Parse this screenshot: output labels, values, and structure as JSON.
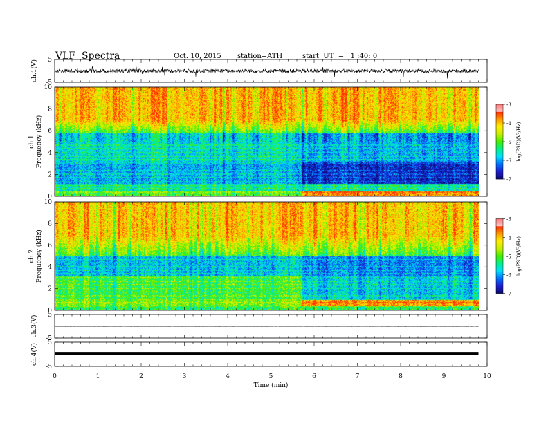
{
  "header": {
    "title": "VLF  Spectra",
    "date": "Oct. 10, 2015",
    "station": "station=ATH",
    "start": "start  UT  =   1 :40: 0"
  },
  "chart_data": [
    {
      "type": "line",
      "panel": "ch1-waveform",
      "ylabel": "ch.1(V)",
      "ylim": [
        -5,
        5
      ],
      "y_ticks": [
        "-5",
        "5"
      ],
      "x_range_min": [
        0,
        9.8
      ],
      "approx_level": 0,
      "line_color": "#000000"
    },
    {
      "type": "heatmap",
      "panel": "ch1-spectrogram",
      "ylabel_channel": "ch.1",
      "ylabel": "Frequency  (kHz)",
      "ylim": [
        0,
        10
      ],
      "y_ticks": [
        "0",
        "2",
        "4",
        "6",
        "8",
        "10"
      ],
      "data_end_min": 9.8,
      "colorbar": {
        "label": "log(PSD)(V²/Hz)",
        "range": [
          -7,
          -3
        ],
        "ticks": [
          "-3",
          "-4",
          "-5",
          "-6",
          "-7"
        ]
      }
    },
    {
      "type": "heatmap",
      "panel": "ch2-spectrogram",
      "ylabel_channel": "ch.2",
      "ylabel": "Frequency  (kHz)",
      "ylim": [
        0,
        10
      ],
      "y_ticks": [
        "0",
        "2",
        "4",
        "6",
        "8",
        "10"
      ],
      "data_end_min": 9.8,
      "colorbar": {
        "label": "log(PSD)(V²/Hz)",
        "range": [
          -7,
          -3
        ],
        "ticks": [
          "-3",
          "-4",
          "-5",
          "-6",
          "-7"
        ]
      }
    },
    {
      "type": "line",
      "panel": "ch3-waveform",
      "ylabel": "ch.3(V)",
      "ylim": [
        -5,
        5
      ],
      "y_ticks": [
        "-5",
        "5"
      ],
      "approx_level": 0,
      "line_color": "#000000"
    },
    {
      "type": "line",
      "panel": "ch4-waveform",
      "ylabel": "ch.4(V)",
      "ylim": [
        -5,
        5
      ],
      "y_ticks": [
        "-5",
        "5"
      ],
      "approx_level": 0,
      "line_color": "#000000"
    }
  ],
  "x_axis": {
    "label": "Time  (min)",
    "range": [
      0,
      10
    ],
    "ticks": [
      "0",
      "1",
      "2",
      "3",
      "4",
      "5",
      "6",
      "7",
      "8",
      "9",
      "10"
    ]
  },
  "colors": {
    "axis": "#000000",
    "colormap": [
      "#0a0a6e",
      "#1e1ed2",
      "#0070ff",
      "#00e0ff",
      "#00f08a",
      "#44ee00",
      "#c8ee00",
      "#ffee00",
      "#ff9a00",
      "#ff2a00",
      "#ffdada"
    ]
  }
}
